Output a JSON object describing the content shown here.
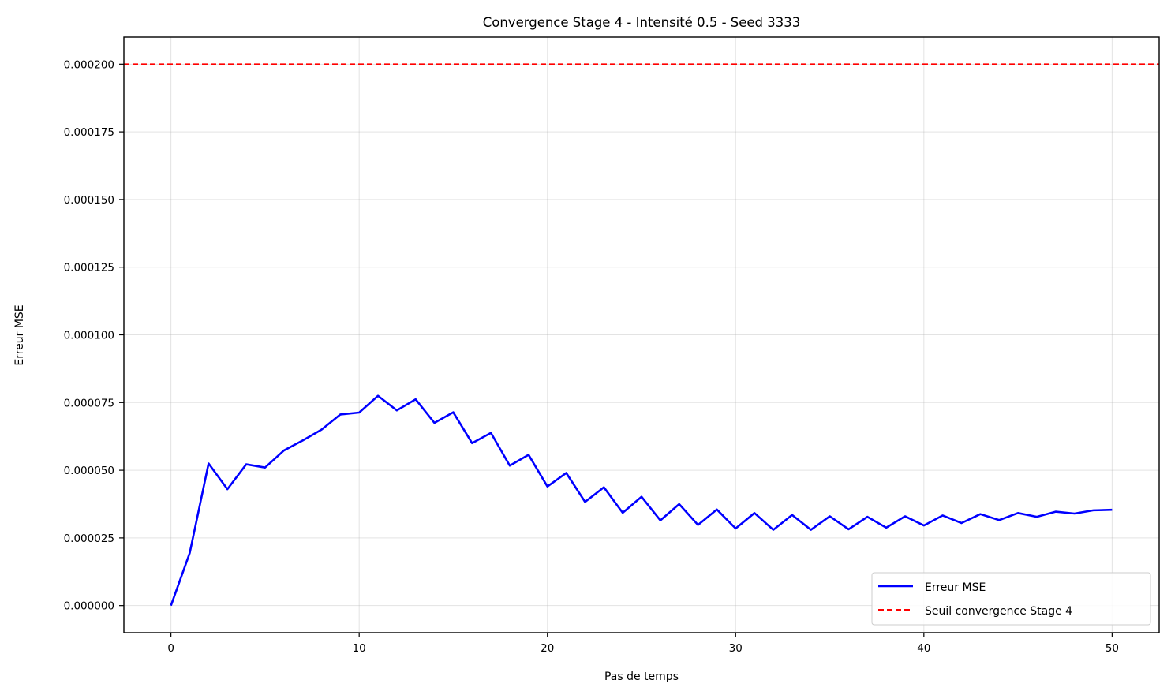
{
  "chart_data": {
    "type": "line",
    "title": "Convergence Stage 4 - Intensité 0.5 - Seed 3333",
    "xlabel": "Pas de temps",
    "ylabel": "Erreur MSE",
    "xlim": [
      -2.5,
      52.5
    ],
    "ylim": [
      -1e-05,
      0.00021
    ],
    "xticks": [
      0,
      10,
      20,
      30,
      40,
      50
    ],
    "xtick_labels": [
      "0",
      "10",
      "20",
      "30",
      "40",
      "50"
    ],
    "yticks": [
      0,
      2.5e-05,
      5e-05,
      7.5e-05,
      0.0001,
      0.000125,
      0.00015,
      0.000175,
      0.0002
    ],
    "ytick_labels": [
      "0.000000",
      "0.000025",
      "0.000050",
      "0.000075",
      "0.000100",
      "0.000125",
      "0.000150",
      "0.000175",
      "0.000200"
    ],
    "grid": true,
    "legend_position": "lower-right",
    "series": [
      {
        "name": "Erreur MSE",
        "color": "#0000ff",
        "style": "solid",
        "x": [
          0,
          1,
          2,
          3,
          4,
          5,
          6,
          7,
          8,
          9,
          10,
          11,
          12,
          13,
          14,
          15,
          16,
          17,
          18,
          19,
          20,
          21,
          22,
          23,
          24,
          25,
          26,
          27,
          28,
          29,
          30,
          31,
          32,
          33,
          34,
          35,
          36,
          37,
          38,
          39,
          40,
          41,
          42,
          43,
          44,
          45,
          46,
          47,
          48,
          49,
          50
        ],
        "values": [
          0.0,
          1.95e-05,
          5.25e-05,
          4.3e-05,
          5.22e-05,
          5.1e-05,
          5.73e-05,
          6.1e-05,
          6.5e-05,
          7.06e-05,
          7.13e-05,
          7.75e-05,
          7.21e-05,
          7.62e-05,
          6.75e-05,
          7.14e-05,
          6e-05,
          6.38e-05,
          5.17e-05,
          5.57e-05,
          4.4e-05,
          4.9e-05,
          3.83e-05,
          4.37e-05,
          3.43e-05,
          4.02e-05,
          3.15e-05,
          3.75e-05,
          2.98e-05,
          3.55e-05,
          2.85e-05,
          3.42e-05,
          2.8e-05,
          3.35e-05,
          2.8e-05,
          3.3e-05,
          2.82e-05,
          3.28e-05,
          2.88e-05,
          3.3e-05,
          2.96e-05,
          3.33e-05,
          3.05e-05,
          3.38e-05,
          3.16e-05,
          3.42e-05,
          3.28e-05,
          3.47e-05,
          3.4e-05,
          3.52e-05,
          3.54e-05
        ]
      },
      {
        "name": "Seuil convergence Stage 4",
        "color": "#ff0000",
        "style": "dashed",
        "hline": 0.0002
      }
    ]
  }
}
